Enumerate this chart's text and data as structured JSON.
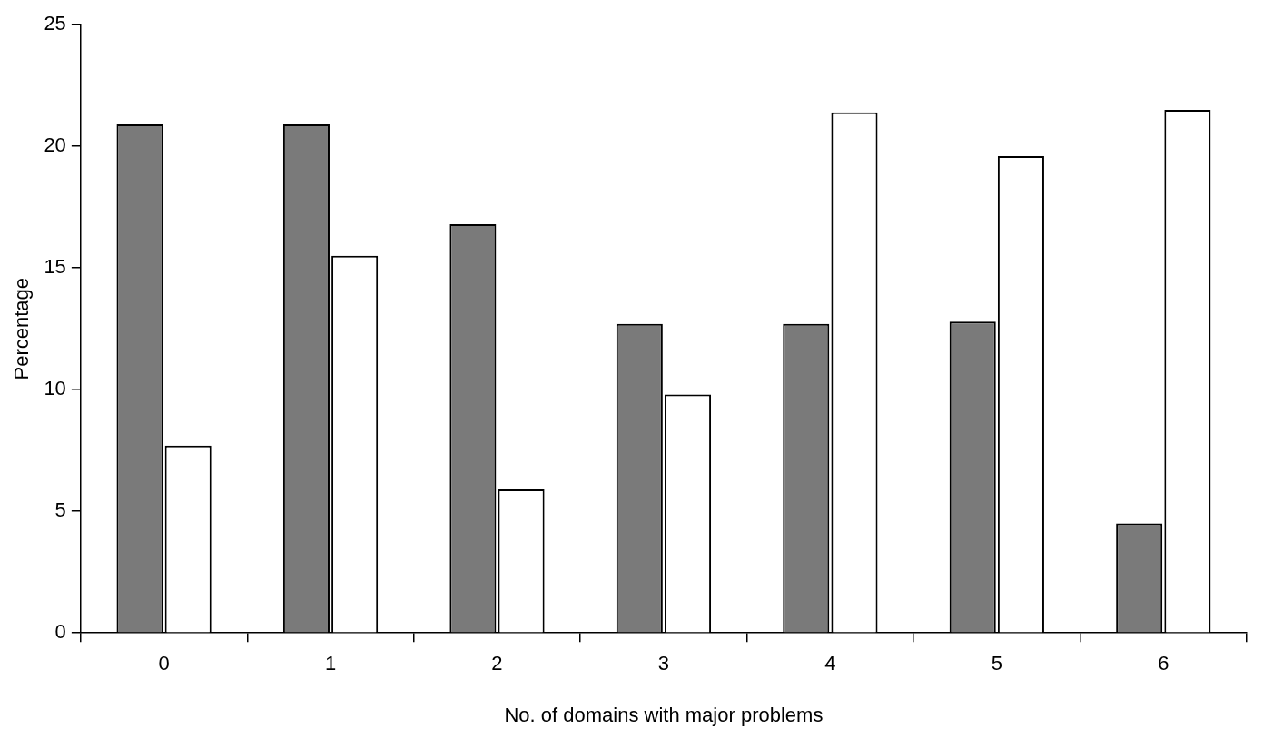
{
  "chart_data": {
    "type": "bar",
    "xlabel": "No. of domains with major problems",
    "ylabel": "Percentage",
    "categories": [
      "0",
      "1",
      "2",
      "3",
      "4",
      "5",
      "6"
    ],
    "series": [
      {
        "color": "#7a7a7a",
        "values": [
          20.9,
          20.9,
          16.8,
          12.7,
          12.7,
          12.8,
          4.5
        ]
      },
      {
        "color": "#ffffff",
        "values": [
          7.7,
          15.5,
          5.9,
          9.8,
          21.4,
          19.6,
          21.5
        ]
      }
    ],
    "ylim": [
      0,
      25
    ],
    "yticks": [
      0,
      5,
      10,
      15,
      20,
      25
    ],
    "grid": false,
    "legend": false
  }
}
